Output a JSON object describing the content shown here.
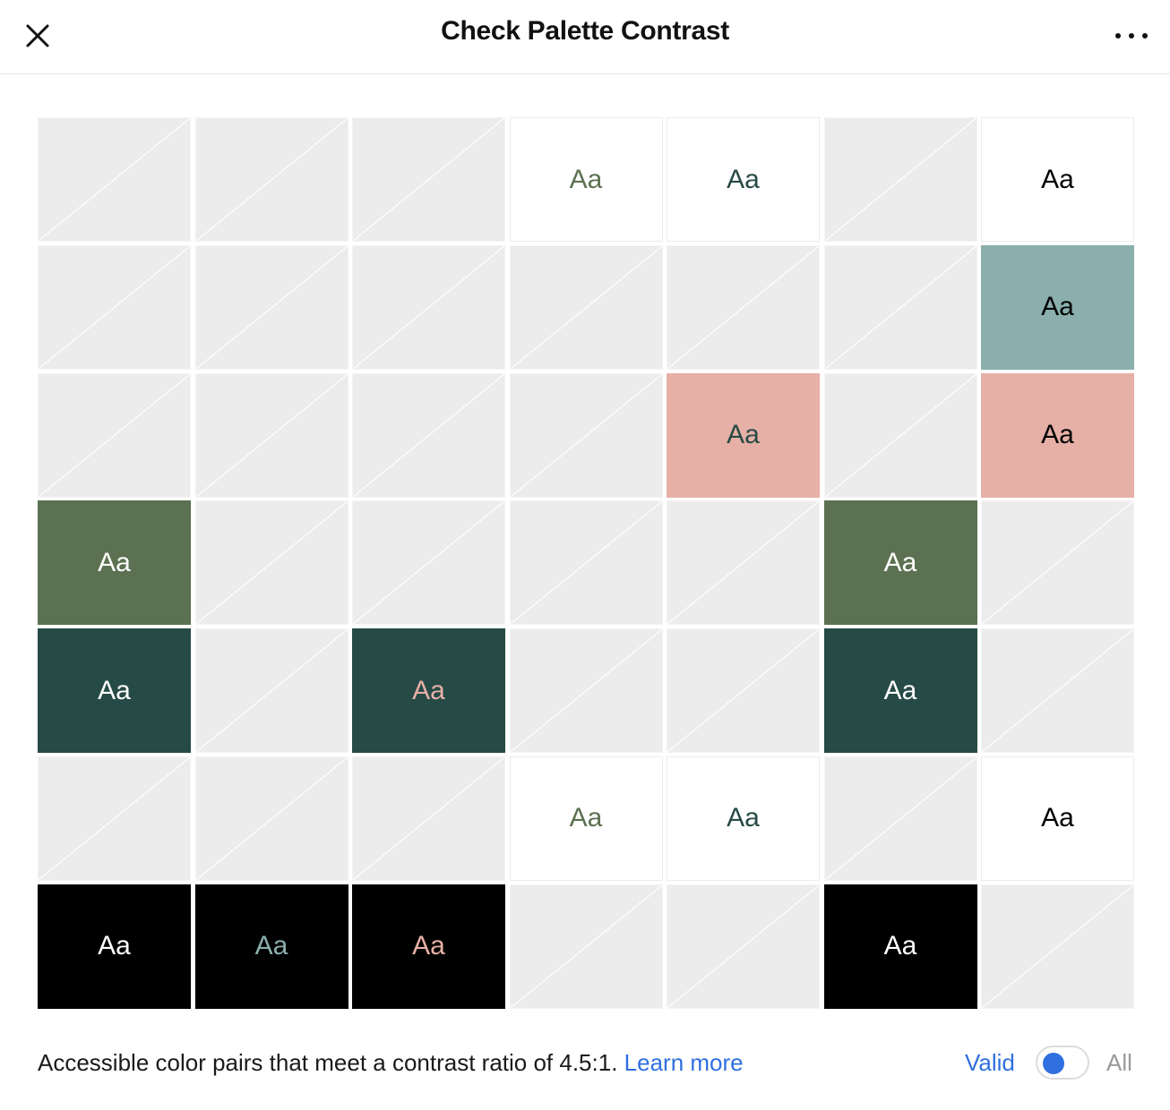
{
  "header": {
    "title": "Check Palette Contrast",
    "close_icon": "close-icon",
    "more_icon": "more-horizontal-icon"
  },
  "sample_text": "Aa",
  "palette": {
    "white": "#ffffff",
    "teal": "#8aafad",
    "pink": "#e6b0a7",
    "olive": "#5c7151",
    "dark_green": "#264a45",
    "black": "#000000",
    "empty": "#ececec"
  },
  "grid": {
    "rows": [
      {
        "bg": "white",
        "cells": [
          null,
          null,
          null,
          "olive",
          "dark_green",
          null,
          "black"
        ]
      },
      {
        "bg": "teal",
        "cells": [
          null,
          null,
          null,
          null,
          null,
          null,
          "black"
        ]
      },
      {
        "bg": "pink",
        "cells": [
          null,
          null,
          null,
          null,
          "dark_green",
          null,
          "black"
        ]
      },
      {
        "bg": "olive",
        "cells": [
          "white",
          null,
          null,
          null,
          null,
          "white",
          null
        ]
      },
      {
        "bg": "dark_green",
        "cells": [
          "white",
          null,
          "pink",
          null,
          null,
          "white",
          null
        ]
      },
      {
        "bg": "white",
        "cells": [
          null,
          null,
          null,
          "olive",
          "dark_green",
          null,
          "black"
        ]
      },
      {
        "bg": "black",
        "cells": [
          "white",
          "teal",
          "pink",
          null,
          null,
          "white",
          null
        ]
      }
    ]
  },
  "footer": {
    "description": "Accessible color pairs that meet a contrast ratio of 4.5:1.",
    "learn_more": "Learn more",
    "toggle_left_label": "Valid",
    "toggle_right_label": "All",
    "toggle_state": "Valid"
  }
}
